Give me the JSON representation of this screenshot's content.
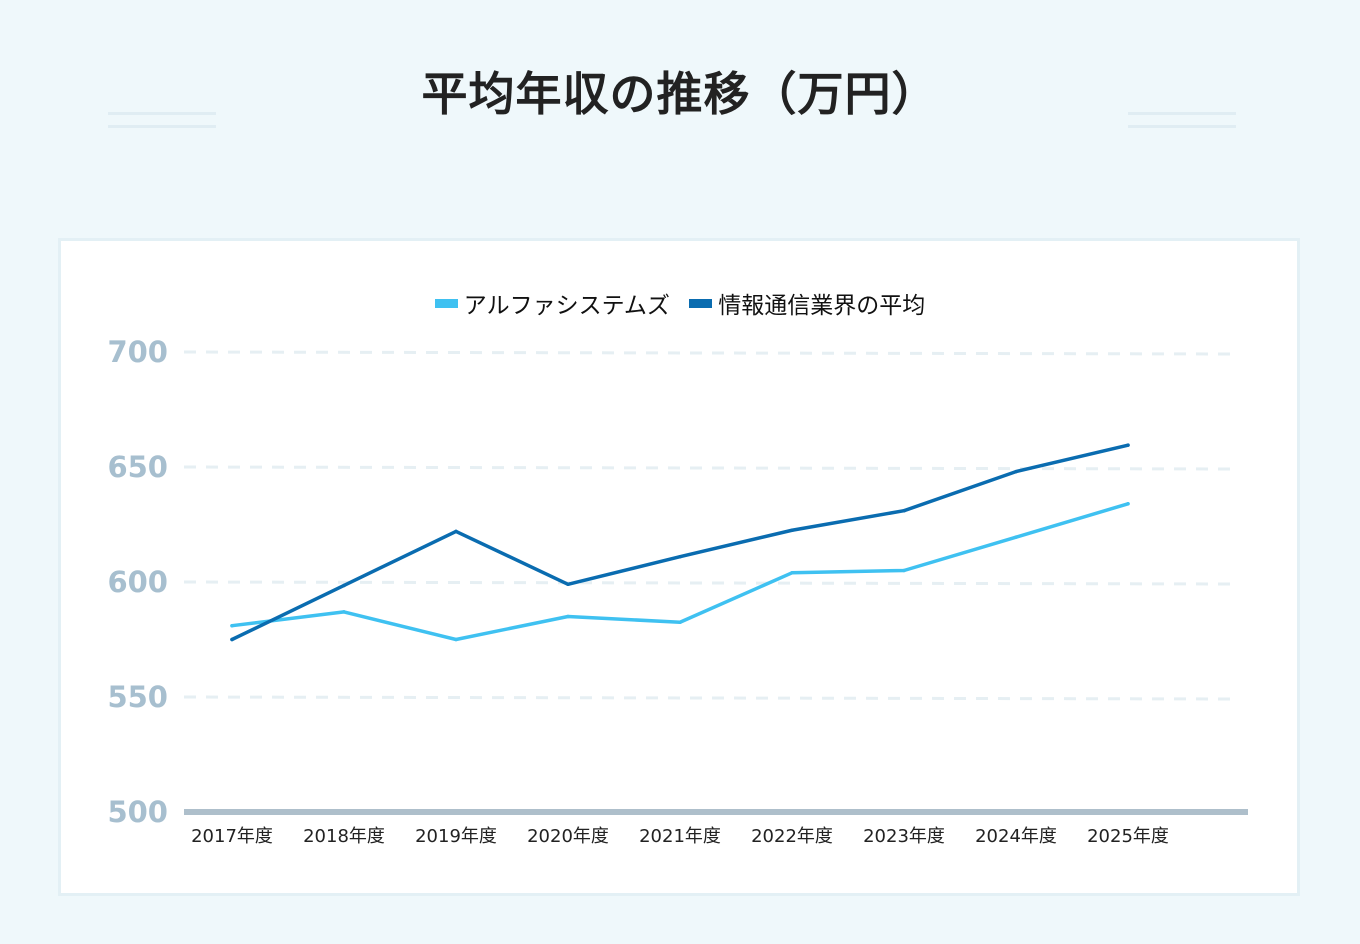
{
  "page": {
    "title": "平均年収の推移（万円）"
  },
  "chart_data": {
    "type": "line",
    "title": "平均年収の推移（万円）",
    "categories": [
      "2017年度",
      "2018年度",
      "2019年度",
      "2020年度",
      "2021年度",
      "2022年度",
      "2023年度",
      "2024年度",
      "2025年度"
    ],
    "series": [
      {
        "name": "アルファシステムズ",
        "color": "#3fc1f1",
        "values": [
          581,
          587,
          575,
          585,
          582.5,
          604,
          605,
          619.5,
          634
        ]
      },
      {
        "name": "情報通信業界の平均",
        "color": "#0a6cb0",
        "values": [
          575,
          598.5,
          622,
          599,
          611,
          622.5,
          631,
          648,
          659.5
        ]
      }
    ],
    "yticks": [
      500,
      550,
      600,
      650,
      700
    ],
    "ylim": [
      500,
      700
    ],
    "grid": true,
    "legend": "top-center",
    "colors": {
      "tick_label": "#a7bfcf",
      "grid": "#e6eff3",
      "baseline": "#aebfcb"
    }
  }
}
